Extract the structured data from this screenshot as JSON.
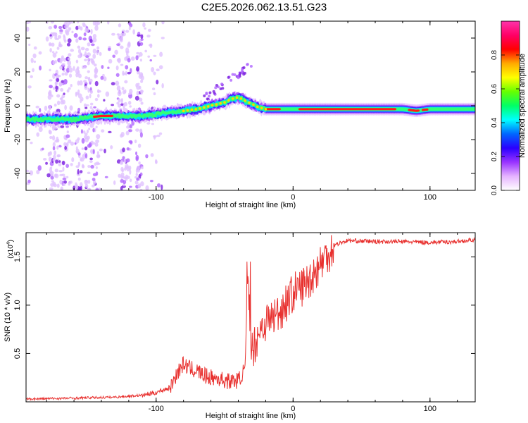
{
  "title": "C2E5.2026.062.13.51.G23",
  "chart_data": [
    {
      "type": "heatmap",
      "xlabel": "Height of straight line (km)",
      "ylabel": "Frequency (Hz)",
      "xlim": [
        -195,
        133
      ],
      "ylim": [
        -50,
        50
      ],
      "xticks": [
        -100,
        0,
        100
      ],
      "yticks": [
        -40,
        -20,
        0,
        20,
        40
      ],
      "ridge": {
        "x": [
          -195,
          -175,
          -160,
          -150,
          -140,
          -130,
          -120,
          -110,
          -100,
          -90,
          -80,
          -70,
          -60,
          -50,
          -45,
          -40,
          -35,
          -30,
          -25,
          -20,
          -10,
          0,
          20,
          40,
          60,
          80,
          90,
          100,
          133
        ],
        "y": [
          -8,
          -8,
          -8,
          -7,
          -6,
          -6,
          -6,
          -6,
          -5,
          -4,
          -3,
          -2,
          0,
          2,
          4,
          5,
          3,
          1,
          -1,
          -2,
          -2,
          -2,
          -2,
          -2,
          -2,
          -2,
          -3,
          -2,
          -2
        ]
      },
      "colorbar": {
        "label": "Normalized spectral amplitude",
        "range": [
          0,
          1
        ],
        "ticks": [
          "0.0",
          "0.2",
          "0.4",
          "0.6",
          "0.8"
        ],
        "tick_values": [
          0,
          0.2,
          0.4,
          0.6,
          0.8
        ],
        "colors": [
          "#ffffff",
          "#e5b3ff",
          "#9933ff",
          "#2a00ff",
          "#0066ff",
          "#00ffff",
          "#00ff66",
          "#66ff00",
          "#ffff00",
          "#ffaa00",
          "#ff0000",
          "#ff0066",
          "#ff33aa"
        ]
      }
    },
    {
      "type": "line",
      "xlabel": "Height of straight line (km)",
      "ylabel": "SNR (10 * v/v)",
      "y_multiplier": "(x10",
      "y_multiplier_exp": "4",
      "y_multiplier_close": ")",
      "xlim": [
        -195,
        133
      ],
      "ylim": [
        0,
        17500
      ],
      "xticks": [
        -100,
        0,
        100
      ],
      "yticks": [
        5000,
        10000,
        15000
      ],
      "ytick_labels": [
        "0.5",
        "1.0",
        "1.5"
      ],
      "series": [
        {
          "name": "SNR",
          "color": "#e8312f",
          "x": [
            -195,
            -160,
            -130,
            -110,
            -100,
            -90,
            -85,
            -80,
            -75,
            -70,
            -65,
            -60,
            -55,
            -50,
            -45,
            -40,
            -35,
            -33,
            -30,
            -27,
            -25,
            -20,
            -15,
            -10,
            -5,
            0,
            5,
            10,
            15,
            20,
            25,
            30,
            35,
            40,
            60,
            80,
            100,
            120,
            133
          ],
          "y": [
            300,
            400,
            500,
            700,
            1000,
            1500,
            3000,
            4000,
            3500,
            3300,
            2800,
            2600,
            2500,
            2300,
            2200,
            2300,
            3500,
            12000,
            5500,
            6500,
            7500,
            8500,
            9000,
            9500,
            10500,
            11500,
            12000,
            12500,
            13500,
            14500,
            15500,
            16200,
            16500,
            16700,
            16600,
            16600,
            16500,
            16600,
            16800
          ]
        }
      ]
    }
  ]
}
